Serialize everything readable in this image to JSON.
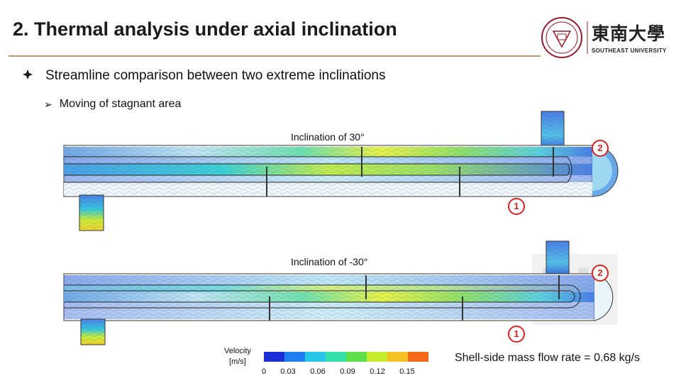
{
  "slide": {
    "title": "2. Thermal analysis under axial inclination",
    "bullet_main": "Streamline comparison between two extreme inclinations",
    "bullet_sub": "Moving of stagnant area"
  },
  "logo": {
    "name_cn": "東南大學",
    "name_en": "SOUTHEAST UNIVERSITY"
  },
  "panels": [
    {
      "caption": "Inclination of 30°",
      "marker_top": "2",
      "marker_bottom": "1"
    },
    {
      "caption": "Inclination of -30°",
      "marker_top": "2",
      "marker_bottom": "1"
    }
  ],
  "legend": {
    "title_line1": "Velocity",
    "title_line2": "[m/s]",
    "ticks": [
      "0",
      "0.03",
      "0.06",
      "0.09",
      "0.12",
      "0.15"
    ],
    "colors": [
      "#1d2fd6",
      "#1f7ef0",
      "#25c6e8",
      "#33e0a8",
      "#5fe04a",
      "#c6ec2a",
      "#f5c224",
      "#f46a1a"
    ]
  },
  "note": "Shell-side mass flow rate = 0.68 kg/s",
  "colors": {
    "accent_rule": "#b49a6e",
    "marker_red": "#e02020"
  }
}
